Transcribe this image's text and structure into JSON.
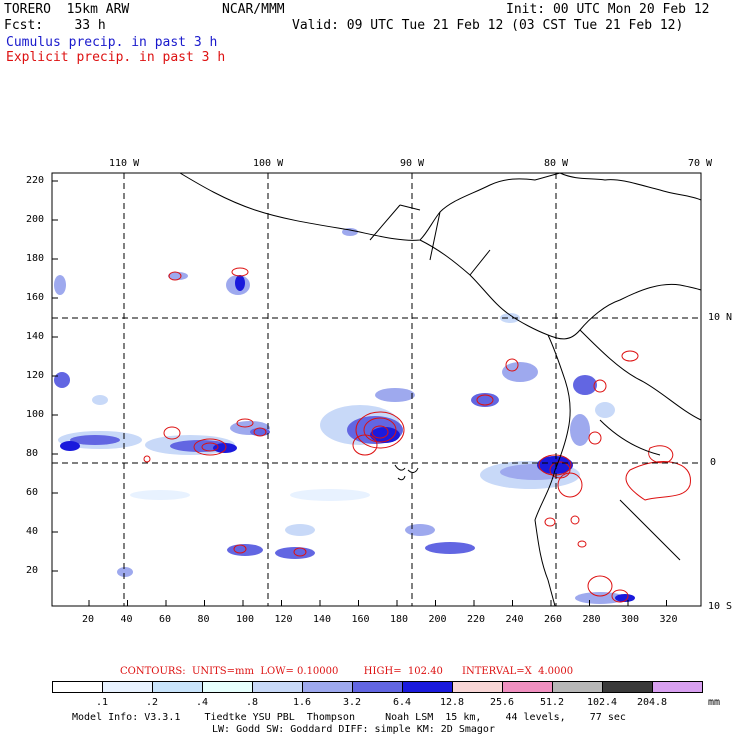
{
  "header": {
    "model_name": "TORERO  15km ARW",
    "ncar": "NCAR/MMM",
    "init": "Init: 00 UTC Mon 20 Feb 12",
    "fcst": "Fcst:    33 h",
    "valid": "Valid: 09 UTC Tue 21 Feb 12 (03 CST Tue 21 Feb 12)",
    "cumulus_label": "Cumulus precip. in past 3 h",
    "explicit_label": "Explicit precip. in past 3 h"
  },
  "axes": {
    "top_lon_labels": [
      "110 W",
      "100 W",
      "90 W",
      "80 W",
      "70 W"
    ],
    "right_lat_labels": [
      "10 N",
      "0",
      "10 S"
    ],
    "left_y_ticks": [
      "220",
      "200",
      "180",
      "160",
      "140",
      "120",
      "100",
      "80",
      "60",
      "40",
      "20"
    ],
    "bottom_x_ticks": [
      "20",
      "40",
      "60",
      "80",
      "100",
      "120",
      "140",
      "160",
      "180",
      "200",
      "220",
      "240",
      "260",
      "280",
      "300",
      "320"
    ]
  },
  "contours_line": "CONTOURS:  UNITS=mm  LOW= 0.10000        HIGH=  102.40      INTERVAL=X  4.0000",
  "colorbar": {
    "colors": [
      "#ffffff",
      "#e8f2ff",
      "#c9e4fb",
      "#e6fffd",
      "#c8d9f8",
      "#9ea9ee",
      "#6266e2",
      "#1a1adc",
      "#f8d6d6",
      "#f090c0",
      "#b7b7b7",
      "#3a3a3a",
      "#d8a0f0"
    ],
    "labels": [
      ".1",
      ".2",
      ".4",
      ".8",
      "1.6",
      "3.2",
      "6.4",
      "12.8",
      "25.6",
      "51.2",
      "102.4",
      "204.8"
    ],
    "unit": "mm"
  },
  "footer": {
    "line1": "Model Info: V3.3.1    Tiedtke YSU PBL  Thompson     Noah LSM  15 km,    44 levels,    77 sec",
    "line2": "LW: Godd SW: Goddard DIFF: simple KM: 2D Smagor"
  }
}
